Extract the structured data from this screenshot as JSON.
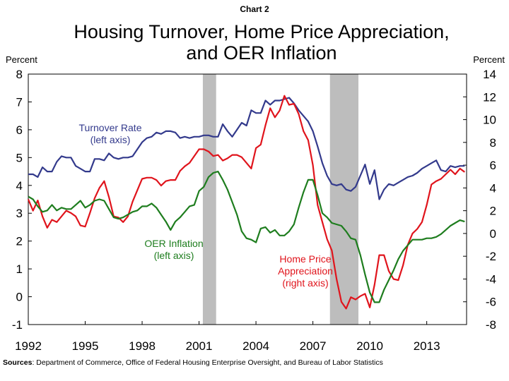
{
  "header": {
    "chart_label": "Chart 2",
    "title": "Housing Turnover, Home Price Appreciation,\nand OER Inflation",
    "unit_left": "Percent",
    "unit_right": "Percent"
  },
  "footer": {
    "sources_label": "Sources",
    "sources_text": ": Department of Commerce, Office of Federal Housing Enterprise Oversight, and Bureau of Labor Statistics"
  },
  "colors": {
    "turnover": "#333a8c",
    "hpa": "#e0141c",
    "oer": "#1e7d1e",
    "recession": "#bdbdbd"
  },
  "chart_data": {
    "type": "line",
    "xlim": [
      1992,
      2015.1
    ],
    "x_ticks": [
      "1992",
      "1995",
      "1998",
      "2001",
      "2004",
      "2007",
      "2010",
      "2013"
    ],
    "left_axis": {
      "ylim": [
        -1,
        8
      ],
      "ticks": [
        "-1",
        "0",
        "1",
        "2",
        "3",
        "4",
        "5",
        "6",
        "7",
        "8"
      ]
    },
    "right_axis": {
      "ylim": [
        -8,
        14
      ],
      "ticks": [
        "-8",
        "-6",
        "-4",
        "-2",
        "0",
        "2",
        "4",
        "6",
        "8",
        "10",
        "12",
        "14"
      ]
    },
    "recessions": [
      [
        2001.2,
        2001.9
      ],
      [
        2007.9,
        2009.4
      ]
    ],
    "grid": false,
    "series": [
      {
        "name": "Turnover Rate (left axis)",
        "key": "turnover",
        "axis": "left",
        "points": [
          [
            1992,
            4.4
          ],
          [
            1992.25,
            4.4
          ],
          [
            1992.5,
            4.3
          ],
          [
            1992.75,
            4.65
          ],
          [
            1993,
            4.5
          ],
          [
            1993.25,
            4.5
          ],
          [
            1993.5,
            4.85
          ],
          [
            1993.75,
            5.05
          ],
          [
            1994,
            5.0
          ],
          [
            1994.25,
            5.0
          ],
          [
            1994.5,
            4.7
          ],
          [
            1994.75,
            4.6
          ],
          [
            1995,
            4.5
          ],
          [
            1995.25,
            4.5
          ],
          [
            1995.5,
            4.95
          ],
          [
            1995.75,
            4.95
          ],
          [
            1996,
            4.9
          ],
          [
            1996.25,
            5.15
          ],
          [
            1996.5,
            5.0
          ],
          [
            1996.75,
            4.95
          ],
          [
            1997,
            5.0
          ],
          [
            1997.25,
            5.0
          ],
          [
            1997.5,
            5.05
          ],
          [
            1997.75,
            5.3
          ],
          [
            1998,
            5.55
          ],
          [
            1998.25,
            5.7
          ],
          [
            1998.5,
            5.75
          ],
          [
            1998.75,
            5.9
          ],
          [
            1999,
            5.85
          ],
          [
            1999.25,
            5.95
          ],
          [
            1999.5,
            5.95
          ],
          [
            1999.75,
            5.9
          ],
          [
            2000,
            5.7
          ],
          [
            2000.25,
            5.75
          ],
          [
            2000.5,
            5.7
          ],
          [
            2000.75,
            5.75
          ],
          [
            2001,
            5.75
          ],
          [
            2001.25,
            5.8
          ],
          [
            2001.5,
            5.8
          ],
          [
            2001.75,
            5.75
          ],
          [
            2002,
            5.75
          ],
          [
            2002.25,
            6.2
          ],
          [
            2002.5,
            5.95
          ],
          [
            2002.75,
            5.75
          ],
          [
            2003,
            6.0
          ],
          [
            2003.25,
            6.25
          ],
          [
            2003.5,
            6.15
          ],
          [
            2003.75,
            6.7
          ],
          [
            2004,
            6.6
          ],
          [
            2004.25,
            6.6
          ],
          [
            2004.5,
            7.05
          ],
          [
            2004.75,
            6.9
          ],
          [
            2005,
            7.05
          ],
          [
            2005.25,
            7.05
          ],
          [
            2005.5,
            7.1
          ],
          [
            2005.75,
            7.15
          ],
          [
            2006,
            6.95
          ],
          [
            2006.25,
            6.7
          ],
          [
            2006.5,
            6.5
          ],
          [
            2006.75,
            6.3
          ],
          [
            2007,
            5.95
          ],
          [
            2007.25,
            5.4
          ],
          [
            2007.5,
            4.8
          ],
          [
            2007.75,
            4.35
          ],
          [
            2008,
            4.05
          ],
          [
            2008.25,
            4.0
          ],
          [
            2008.5,
            4.05
          ],
          [
            2008.75,
            3.85
          ],
          [
            2009,
            3.8
          ],
          [
            2009.25,
            3.95
          ],
          [
            2009.5,
            4.35
          ],
          [
            2009.75,
            4.75
          ],
          [
            2010,
            4.05
          ],
          [
            2010.25,
            4.55
          ],
          [
            2010.5,
            3.5
          ],
          [
            2010.75,
            3.85
          ],
          [
            2011,
            4.05
          ],
          [
            2011.25,
            4.0
          ],
          [
            2011.5,
            4.1
          ],
          [
            2011.75,
            4.2
          ],
          [
            2012,
            4.3
          ],
          [
            2012.25,
            4.35
          ],
          [
            2012.5,
            4.45
          ],
          [
            2012.75,
            4.6
          ],
          [
            2013,
            4.7
          ],
          [
            2013.25,
            4.8
          ],
          [
            2013.5,
            4.9
          ],
          [
            2013.75,
            4.55
          ],
          [
            2014,
            4.5
          ],
          [
            2014.25,
            4.7
          ],
          [
            2014.5,
            4.65
          ],
          [
            2014.75,
            4.7
          ],
          [
            2015,
            4.7
          ]
        ]
      },
      {
        "name": "Home Price Appreciation (right axis)",
        "key": "hpa",
        "axis": "right",
        "points": [
          [
            1992,
            3.0
          ],
          [
            1992.25,
            2.0
          ],
          [
            1992.5,
            2.9
          ],
          [
            1992.75,
            1.5
          ],
          [
            1993,
            0.5
          ],
          [
            1993.25,
            1.2
          ],
          [
            1993.5,
            1.0
          ],
          [
            1993.75,
            1.5
          ],
          [
            1994,
            2.0
          ],
          [
            1994.25,
            1.8
          ],
          [
            1994.5,
            1.5
          ],
          [
            1994.75,
            0.7
          ],
          [
            1995,
            0.6
          ],
          [
            1995.25,
            1.8
          ],
          [
            1995.5,
            3.1
          ],
          [
            1995.75,
            4.0
          ],
          [
            1996,
            4.6
          ],
          [
            1996.25,
            3.2
          ],
          [
            1996.5,
            1.5
          ],
          [
            1996.75,
            1.4
          ],
          [
            1997,
            1.0
          ],
          [
            1997.25,
            1.5
          ],
          [
            1997.5,
            2.8
          ],
          [
            1997.75,
            3.8
          ],
          [
            1998,
            4.8
          ],
          [
            1998.25,
            4.9
          ],
          [
            1998.5,
            4.9
          ],
          [
            1998.75,
            4.7
          ],
          [
            1999,
            4.2
          ],
          [
            1999.25,
            4.6
          ],
          [
            1999.5,
            4.7
          ],
          [
            1999.75,
            4.7
          ],
          [
            2000,
            5.5
          ],
          [
            2000.25,
            5.9
          ],
          [
            2000.5,
            6.2
          ],
          [
            2000.75,
            6.8
          ],
          [
            2001,
            7.4
          ],
          [
            2001.25,
            7.4
          ],
          [
            2001.5,
            7.2
          ],
          [
            2001.75,
            6.8
          ],
          [
            2002,
            6.9
          ],
          [
            2002.25,
            6.4
          ],
          [
            2002.5,
            6.6
          ],
          [
            2002.75,
            6.9
          ],
          [
            2003,
            6.9
          ],
          [
            2003.25,
            6.7
          ],
          [
            2003.5,
            6.2
          ],
          [
            2003.75,
            5.7
          ],
          [
            2004,
            7.5
          ],
          [
            2004.25,
            7.8
          ],
          [
            2004.5,
            9.5
          ],
          [
            2004.75,
            11.0
          ],
          [
            2005,
            10.2
          ],
          [
            2005.25,
            10.8
          ],
          [
            2005.5,
            12.1
          ],
          [
            2005.75,
            11.3
          ],
          [
            2006,
            11.4
          ],
          [
            2006.25,
            10.5
          ],
          [
            2006.5,
            9.0
          ],
          [
            2006.75,
            8.2
          ],
          [
            2007,
            6.0
          ],
          [
            2007.25,
            2.5
          ],
          [
            2007.5,
            1.0
          ],
          [
            2007.75,
            -0.5
          ],
          [
            2008,
            -1.5
          ],
          [
            2008.25,
            -4.0
          ],
          [
            2008.5,
            -6.0
          ],
          [
            2008.75,
            -6.6
          ],
          [
            2009,
            -5.6
          ],
          [
            2009.25,
            -5.8
          ],
          [
            2009.5,
            -5.5
          ],
          [
            2009.75,
            -5.3
          ],
          [
            2010,
            -6.5
          ],
          [
            2010.25,
            -4.5
          ],
          [
            2010.5,
            -1.9
          ],
          [
            2010.75,
            -1.9
          ],
          [
            2011,
            -3.3
          ],
          [
            2011.25,
            -4.0
          ],
          [
            2011.5,
            -4.1
          ],
          [
            2011.75,
            -2.8
          ],
          [
            2012,
            -1.0
          ],
          [
            2012.25,
            0.0
          ],
          [
            2012.5,
            0.4
          ],
          [
            2012.75,
            1.0
          ],
          [
            2013,
            2.5
          ],
          [
            2013.25,
            4.3
          ],
          [
            2013.5,
            4.6
          ],
          [
            2013.75,
            4.8
          ],
          [
            2014,
            5.2
          ],
          [
            2014.25,
            5.6
          ],
          [
            2014.5,
            5.2
          ],
          [
            2014.75,
            5.7
          ],
          [
            2015,
            5.4
          ]
        ]
      },
      {
        "name": "OER Inflation (left axis)",
        "key": "oer",
        "axis": "left",
        "points": [
          [
            1992,
            3.6
          ],
          [
            1992.25,
            3.5
          ],
          [
            1992.5,
            3.25
          ],
          [
            1992.75,
            3.05
          ],
          [
            1993,
            3.1
          ],
          [
            1993.25,
            3.3
          ],
          [
            1993.5,
            3.1
          ],
          [
            1993.75,
            3.2
          ],
          [
            1994,
            3.15
          ],
          [
            1994.25,
            3.15
          ],
          [
            1994.5,
            3.3
          ],
          [
            1994.75,
            3.45
          ],
          [
            1995,
            3.2
          ],
          [
            1995.25,
            3.3
          ],
          [
            1995.5,
            3.45
          ],
          [
            1995.75,
            3.5
          ],
          [
            1996,
            3.45
          ],
          [
            1996.25,
            3.15
          ],
          [
            1996.5,
            2.85
          ],
          [
            1996.75,
            2.8
          ],
          [
            1997,
            2.85
          ],
          [
            1997.25,
            2.95
          ],
          [
            1997.5,
            3.05
          ],
          [
            1997.75,
            3.1
          ],
          [
            1998,
            3.25
          ],
          [
            1998.25,
            3.25
          ],
          [
            1998.5,
            3.35
          ],
          [
            1998.75,
            3.2
          ],
          [
            1999,
            2.95
          ],
          [
            1999.25,
            2.7
          ],
          [
            1999.5,
            2.4
          ],
          [
            1999.75,
            2.7
          ],
          [
            2000,
            2.85
          ],
          [
            2000.25,
            3.05
          ],
          [
            2000.5,
            3.25
          ],
          [
            2000.75,
            3.3
          ],
          [
            2001,
            3.8
          ],
          [
            2001.25,
            3.95
          ],
          [
            2001.5,
            4.3
          ],
          [
            2001.75,
            4.45
          ],
          [
            2002,
            4.5
          ],
          [
            2002.25,
            4.2
          ],
          [
            2002.5,
            3.85
          ],
          [
            2002.75,
            3.4
          ],
          [
            2003,
            2.95
          ],
          [
            2003.25,
            2.35
          ],
          [
            2003.5,
            2.1
          ],
          [
            2003.75,
            2.05
          ],
          [
            2004,
            1.95
          ],
          [
            2004.25,
            2.45
          ],
          [
            2004.5,
            2.5
          ],
          [
            2004.75,
            2.3
          ],
          [
            2005,
            2.4
          ],
          [
            2005.25,
            2.2
          ],
          [
            2005.5,
            2.2
          ],
          [
            2005.75,
            2.35
          ],
          [
            2006,
            2.6
          ],
          [
            2006.25,
            3.2
          ],
          [
            2006.5,
            3.75
          ],
          [
            2006.75,
            4.2
          ],
          [
            2007,
            4.2
          ],
          [
            2007.25,
            3.65
          ],
          [
            2007.5,
            3.0
          ],
          [
            2007.75,
            2.85
          ],
          [
            2008,
            2.65
          ],
          [
            2008.25,
            2.6
          ],
          [
            2008.5,
            2.55
          ],
          [
            2008.75,
            2.35
          ],
          [
            2009,
            2.1
          ],
          [
            2009.25,
            2.05
          ],
          [
            2009.5,
            1.5
          ],
          [
            2009.75,
            0.8
          ],
          [
            2010,
            0.15
          ],
          [
            2010.25,
            -0.2
          ],
          [
            2010.5,
            -0.2
          ],
          [
            2010.75,
            0.25
          ],
          [
            2011,
            0.6
          ],
          [
            2011.25,
            0.95
          ],
          [
            2011.5,
            1.35
          ],
          [
            2011.75,
            1.65
          ],
          [
            2012,
            1.85
          ],
          [
            2012.25,
            2.05
          ],
          [
            2012.5,
            2.05
          ],
          [
            2012.75,
            2.05
          ],
          [
            2013,
            2.1
          ],
          [
            2013.25,
            2.1
          ],
          [
            2013.5,
            2.15
          ],
          [
            2013.75,
            2.25
          ],
          [
            2014,
            2.4
          ],
          [
            2014.25,
            2.55
          ],
          [
            2014.5,
            2.65
          ],
          [
            2014.75,
            2.75
          ],
          [
            2015,
            2.7
          ]
        ]
      }
    ],
    "annotations": [
      {
        "key": "turnover",
        "lines": [
          "Turnover Rate",
          "(left axis)"
        ]
      },
      {
        "key": "oer",
        "lines": [
          "OER Inflation",
          "(left axis)"
        ]
      },
      {
        "key": "hpa",
        "lines": [
          "Home Price",
          "Appreciation",
          "(right axis)"
        ]
      }
    ]
  }
}
